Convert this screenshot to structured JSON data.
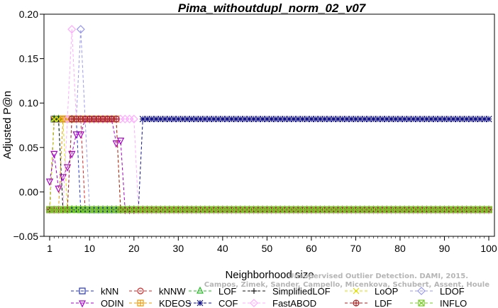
{
  "chart_data": {
    "type": "line",
    "title": "Pima_withoutdupl_norm_02_v07",
    "xlabel": "Neighborhood size",
    "ylabel": "Adjusted P@n",
    "xlim": [
      1,
      100
    ],
    "ylim": [
      -0.05,
      0.2
    ],
    "xticks": [
      1,
      10,
      20,
      30,
      40,
      50,
      60,
      70,
      80,
      90,
      100
    ],
    "yticks": [
      -0.05,
      0.0,
      0.05,
      0.1,
      0.15,
      0.2
    ],
    "ytick_labels": [
      "−0.05",
      "0.00",
      "0.05",
      "0.10",
      "0.15",
      "0.20"
    ],
    "grid": false,
    "legend_position": "bottom",
    "series": [
      {
        "name": "kNN",
        "color": "#2233cc",
        "marker": "square",
        "segments": [
          [
            1,
            -0.02
          ],
          [
            2,
            0.082
          ],
          [
            7,
            0.082
          ],
          [
            8,
            -0.02
          ],
          [
            100,
            -0.02
          ]
        ]
      },
      {
        "name": "kNNW",
        "color": "#dd2222",
        "marker": "circle",
        "segments": [
          [
            1,
            -0.02
          ],
          [
            2,
            0.082
          ],
          [
            8,
            0.082
          ],
          [
            9,
            -0.02
          ],
          [
            100,
            -0.02
          ]
        ]
      },
      {
        "name": "LOF",
        "color": "#22bb22",
        "marker": "triangle-up",
        "segments": [
          [
            1,
            -0.02
          ],
          [
            2,
            0.082
          ],
          [
            3,
            0.082
          ],
          [
            4,
            -0.02
          ],
          [
            100,
            -0.02
          ]
        ]
      },
      {
        "name": "SimplifiedLOF",
        "color": "#111111",
        "marker": "plus",
        "segments": [
          [
            1,
            -0.02
          ],
          [
            2,
            0.082
          ],
          [
            3,
            0.082
          ],
          [
            4,
            -0.02
          ],
          [
            100,
            -0.02
          ]
        ]
      },
      {
        "name": "LoOP",
        "color": "#dddd00",
        "marker": "x",
        "segments": [
          [
            1,
            -0.02
          ],
          [
            2,
            0.082
          ],
          [
            4,
            0.082
          ],
          [
            5,
            -0.02
          ],
          [
            100,
            -0.02
          ]
        ]
      },
      {
        "name": "LDOF",
        "color": "#9999ee",
        "marker": "diamond",
        "segments": [
          [
            1,
            -0.02
          ],
          [
            5,
            -0.02
          ],
          [
            6,
            0.082
          ],
          [
            7,
            0.082
          ],
          [
            8,
            0.183
          ],
          [
            9,
            0.082
          ],
          [
            10,
            -0.02
          ],
          [
            100,
            -0.02
          ]
        ]
      },
      {
        "name": "ODIN",
        "color": "#aa00cc",
        "marker": "triangle-down",
        "segments": [
          [
            1,
            0.012
          ],
          [
            2,
            0.043
          ],
          [
            3,
            0.004
          ],
          [
            4,
            0.017
          ],
          [
            5,
            0.028
          ],
          [
            6,
            0.043
          ],
          [
            7,
            0.065
          ],
          [
            8,
            0.065
          ],
          [
            9,
            0.082
          ],
          [
            15,
            0.082
          ],
          [
            16,
            0.055
          ],
          [
            17,
            0.058
          ],
          [
            18,
            -0.02
          ],
          [
            100,
            -0.02
          ]
        ]
      },
      {
        "name": "KDEOS",
        "color": "#ee9900",
        "marker": "square-cross",
        "segments": [
          [
            1,
            -0.02
          ],
          [
            3,
            -0.02
          ],
          [
            4,
            0.082
          ],
          [
            16,
            0.082
          ],
          [
            17,
            -0.02
          ],
          [
            100,
            -0.02
          ]
        ]
      },
      {
        "name": "COF",
        "color": "#111188",
        "marker": "asterisk",
        "segments": [
          [
            1,
            -0.02
          ],
          [
            21,
            -0.02
          ],
          [
            22,
            0.082
          ],
          [
            100,
            0.082
          ]
        ]
      },
      {
        "name": "FastABOD",
        "color": "#ffaaff",
        "marker": "diamond",
        "segments": [
          [
            1,
            -0.02
          ],
          [
            4,
            -0.02
          ],
          [
            5,
            0.082
          ],
          [
            6,
            0.183
          ],
          [
            7,
            0.082
          ],
          [
            20,
            0.082
          ],
          [
            21,
            -0.02
          ],
          [
            100,
            -0.02
          ]
        ]
      },
      {
        "name": "LDF",
        "color": "#aa2222",
        "marker": "circle-plus",
        "segments": [
          [
            1,
            -0.02
          ],
          [
            5,
            -0.02
          ],
          [
            6,
            0.082
          ],
          [
            16,
            0.082
          ],
          [
            17,
            -0.02
          ],
          [
            100,
            -0.02
          ]
        ]
      },
      {
        "name": "INFLO",
        "color": "#77cc22",
        "marker": "square-x",
        "segments": [
          [
            1,
            -0.02
          ],
          [
            100,
            -0.02
          ]
        ]
      }
    ],
    "legend_order": [
      "kNN",
      "kNNW",
      "LOF",
      "SimplifiedLOF",
      "LoOP",
      "LDOF",
      "ODIN",
      "KDEOS",
      "COF",
      "FastABOD",
      "LDF",
      "INFLO"
    ]
  },
  "watermark": {
    "line1": "Unsupervised Outlier Detection. DAMI, 2015.",
    "line2": "Campos, Zimek, Sander, Campello, Micenkova, Schubert, Assent, Houle"
  }
}
